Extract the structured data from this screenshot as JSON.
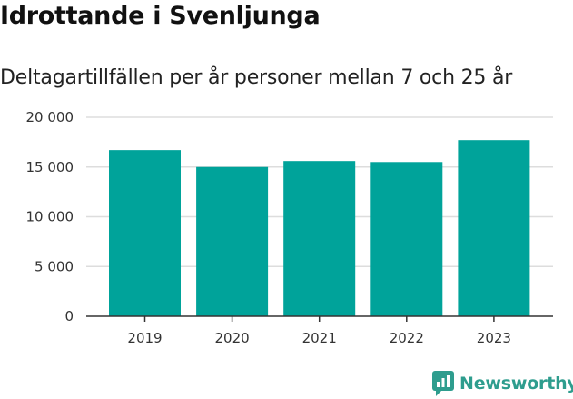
{
  "header": {
    "title": "Idrottande i Svenljunga",
    "subtitle": "Deltagartillfällen per år personer mellan 7 och 25 år"
  },
  "brand": {
    "name": "Newsworthy",
    "icon": "newsworthy-logo-icon"
  },
  "colors": {
    "bar": "#00a39a",
    "grid": "#dddddd",
    "axis": "#333333",
    "brand": "#2e9d8e"
  },
  "chart_data": {
    "type": "bar",
    "title": "Idrottande i Svenljunga",
    "subtitle": "Deltagartillfällen per år personer mellan 7 och 25 år",
    "categories": [
      "2019",
      "2020",
      "2021",
      "2022",
      "2023"
    ],
    "values": [
      16700,
      15000,
      15600,
      15500,
      17700
    ],
    "ylim": [
      0,
      20000
    ],
    "yticks": [
      0,
      5000,
      10000,
      15000,
      20000
    ],
    "ytick_labels": [
      "0",
      "5 000",
      "10 000",
      "15 000",
      "20 000"
    ],
    "grid": true,
    "legend": "none",
    "xlabel": "",
    "ylabel": ""
  }
}
